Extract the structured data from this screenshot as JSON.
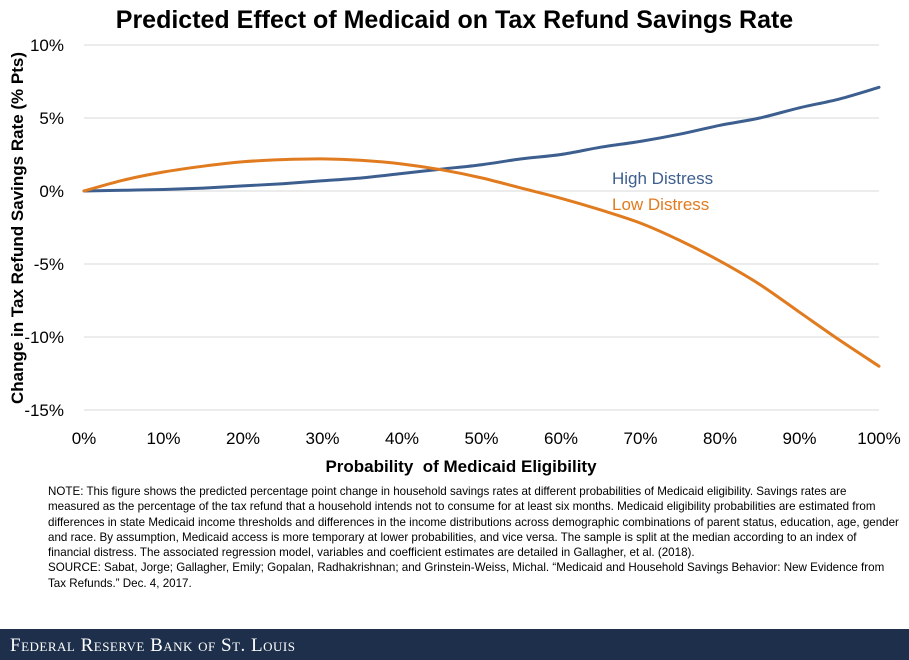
{
  "chart_data": {
    "type": "line",
    "title": "Predicted Effect of Medicaid on Tax Refund Savings Rate",
    "xlabel": "Probability  of Medicaid Eligibility",
    "ylabel": "Change in Tax Refund Savings Rate (% Pts)",
    "xlim": [
      0,
      100
    ],
    "ylim": [
      -15,
      10
    ],
    "x_ticks": [
      0,
      10,
      20,
      30,
      40,
      50,
      60,
      70,
      80,
      90,
      100
    ],
    "x_tick_labels": [
      "0%",
      "10%",
      "20%",
      "30%",
      "40%",
      "50%",
      "60%",
      "70%",
      "80%",
      "90%",
      "100%"
    ],
    "y_ticks": [
      10,
      5,
      0,
      -5,
      -10,
      -15
    ],
    "y_tick_labels": [
      "10%",
      "5%",
      "0%",
      "-5%",
      "-10%",
      "-15%"
    ],
    "grid": "horizontal",
    "series": [
      {
        "name": "High Distress",
        "color": "#3d5f8f",
        "x": [
          0,
          5,
          10,
          15,
          20,
          25,
          30,
          35,
          40,
          45,
          50,
          55,
          60,
          65,
          70,
          75,
          80,
          85,
          90,
          95,
          100
        ],
        "y": [
          0,
          0.05,
          0.1,
          0.2,
          0.35,
          0.5,
          0.7,
          0.9,
          1.2,
          1.5,
          1.8,
          2.2,
          2.5,
          3.0,
          3.4,
          3.9,
          4.5,
          5.0,
          5.7,
          6.3,
          7.1
        ]
      },
      {
        "name": "Low Distress",
        "color": "#e07b1f",
        "x": [
          0,
          5,
          10,
          15,
          20,
          25,
          30,
          35,
          40,
          45,
          50,
          55,
          60,
          65,
          70,
          75,
          80,
          85,
          90,
          95,
          100
        ],
        "y": [
          0,
          0.75,
          1.3,
          1.7,
          2.0,
          2.15,
          2.2,
          2.1,
          1.85,
          1.45,
          0.9,
          0.2,
          -0.5,
          -1.3,
          -2.2,
          -3.4,
          -4.8,
          -6.4,
          -8.3,
          -10.2,
          -12.0
        ]
      }
    ]
  },
  "note": {
    "text": "NOTE: This figure shows the predicted percentage point change in household savings rates at different probabilities of Medicaid eligibility. Savings rates are measured as the percentage of the tax refund that a household intends not to consume for at least six months. Medicaid eligibility probabilities are estimated from differences in state Medicaid income thresholds and differences in the income distributions across demographic combinations of parent status, education, age, gender and race. By assumption, Medicaid access is more temporary at lower probabilities, and vice versa. The sample is split at the median according to an index of financial distress. The associated regression model, variables and coefficient estimates are detailed in Gallagher, et al. (2018).",
    "source": "SOURCE: Sabat, Jorge; Gallagher, Emily; Gopalan, Radhakrishnan; and Grinstein-Weiss, Michal. “Medicaid and Household Savings Behavior: New Evidence from Tax Refunds.” Dec. 4, 2017."
  },
  "footer": {
    "brand": "Federal Reserve Bank of St. Louis"
  },
  "colors": {
    "footer_bg": "#1d2f4b",
    "gridline": "#d9d9d9",
    "high_distress": "#3d5f8f",
    "low_distress": "#e07b1f"
  }
}
